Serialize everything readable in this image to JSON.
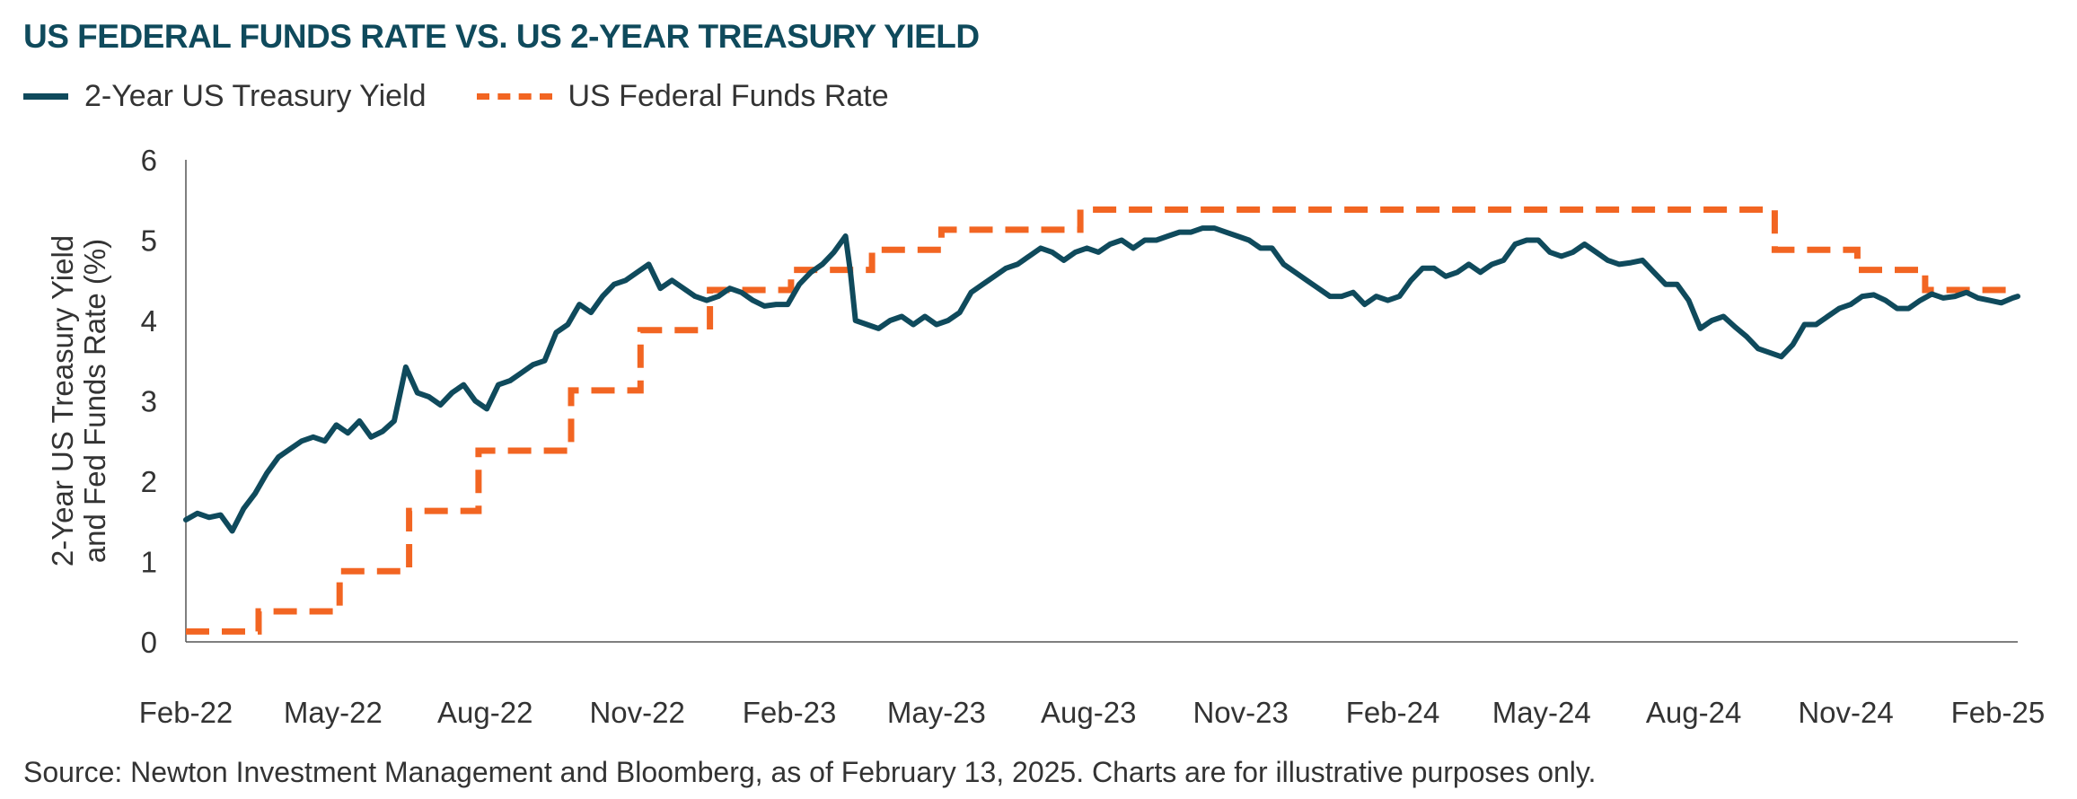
{
  "title": "US FEDERAL FUNDS RATE VS. US 2-YEAR TREASURY YIELD",
  "source": "Source: Newton Investment Management and Bloomberg, as of February 13, 2025. Charts are for illustrative purposes only.",
  "colors": {
    "treasury": "#0f4a5c",
    "fedfunds": "#f26522",
    "axis": "#555555",
    "text": "#333333"
  },
  "chart_data": {
    "type": "line",
    "title": "US FEDERAL FUNDS RATE VS. US 2-YEAR TREASURY YIELD",
    "ylabel": "2-Year US Treasury Yield and Fed Funds Rate (%)",
    "ylabel_lines": [
      "2-Year US Treasury Yield",
      "and Fed Funds Rate (%)"
    ],
    "xlabel": "",
    "ylim": [
      0,
      6
    ],
    "yticks": [
      0,
      1,
      2,
      3,
      4,
      5,
      6
    ],
    "xlim": [
      "2022-02-01",
      "2025-02-13"
    ],
    "xticks": [
      {
        "date": "2022-02-01",
        "label": "Feb-22"
      },
      {
        "date": "2022-05-01",
        "label": "May-22"
      },
      {
        "date": "2022-08-01",
        "label": "Aug-22"
      },
      {
        "date": "2022-11-01",
        "label": "Nov-22"
      },
      {
        "date": "2023-02-01",
        "label": "Feb-23"
      },
      {
        "date": "2023-05-01",
        "label": "May-23"
      },
      {
        "date": "2023-08-01",
        "label": "Aug-23"
      },
      {
        "date": "2023-11-01",
        "label": "Nov-23"
      },
      {
        "date": "2024-02-01",
        "label": "Feb-24"
      },
      {
        "date": "2024-05-01",
        "label": "May-24"
      },
      {
        "date": "2024-08-01",
        "label": "Aug-24"
      },
      {
        "date": "2024-11-01",
        "label": "Nov-24"
      },
      {
        "date": "2025-02-01",
        "label": "Feb-25"
      }
    ],
    "grid": false,
    "legend_position": "top-left",
    "series": [
      {
        "name": "2-Year US Treasury Yield",
        "style": "solid",
        "points": [
          [
            "2022-02-01",
            1.52
          ],
          [
            "2022-02-08",
            1.6
          ],
          [
            "2022-02-15",
            1.55
          ],
          [
            "2022-02-22",
            1.58
          ],
          [
            "2022-03-01",
            1.38
          ],
          [
            "2022-03-08",
            1.66
          ],
          [
            "2022-03-15",
            1.85
          ],
          [
            "2022-03-22",
            2.1
          ],
          [
            "2022-03-29",
            2.3
          ],
          [
            "2022-04-05",
            2.4
          ],
          [
            "2022-04-12",
            2.5
          ],
          [
            "2022-04-19",
            2.55
          ],
          [
            "2022-04-26",
            2.5
          ],
          [
            "2022-05-03",
            2.7
          ],
          [
            "2022-05-10",
            2.6
          ],
          [
            "2022-05-17",
            2.75
          ],
          [
            "2022-05-24",
            2.55
          ],
          [
            "2022-05-31",
            2.62
          ],
          [
            "2022-06-07",
            2.75
          ],
          [
            "2022-06-14",
            3.42
          ],
          [
            "2022-06-21",
            3.1
          ],
          [
            "2022-06-28",
            3.05
          ],
          [
            "2022-07-05",
            2.95
          ],
          [
            "2022-07-12",
            3.1
          ],
          [
            "2022-07-19",
            3.2
          ],
          [
            "2022-07-26",
            3.0
          ],
          [
            "2022-08-02",
            2.9
          ],
          [
            "2022-08-09",
            3.2
          ],
          [
            "2022-08-16",
            3.25
          ],
          [
            "2022-08-23",
            3.35
          ],
          [
            "2022-08-30",
            3.45
          ],
          [
            "2022-09-06",
            3.5
          ],
          [
            "2022-09-13",
            3.85
          ],
          [
            "2022-09-20",
            3.95
          ],
          [
            "2022-09-27",
            4.2
          ],
          [
            "2022-10-04",
            4.1
          ],
          [
            "2022-10-11",
            4.3
          ],
          [
            "2022-10-18",
            4.45
          ],
          [
            "2022-10-25",
            4.5
          ],
          [
            "2022-11-01",
            4.6
          ],
          [
            "2022-11-08",
            4.7
          ],
          [
            "2022-11-15",
            4.4
          ],
          [
            "2022-11-22",
            4.5
          ],
          [
            "2022-11-29",
            4.4
          ],
          [
            "2022-12-06",
            4.3
          ],
          [
            "2022-12-13",
            4.25
          ],
          [
            "2022-12-20",
            4.3
          ],
          [
            "2022-12-27",
            4.4
          ],
          [
            "2023-01-03",
            4.35
          ],
          [
            "2023-01-10",
            4.25
          ],
          [
            "2023-01-17",
            4.18
          ],
          [
            "2023-01-24",
            4.2
          ],
          [
            "2023-01-31",
            4.2
          ],
          [
            "2023-02-07",
            4.45
          ],
          [
            "2023-02-14",
            4.6
          ],
          [
            "2023-02-21",
            4.7
          ],
          [
            "2023-02-28",
            4.85
          ],
          [
            "2023-03-07",
            5.05
          ],
          [
            "2023-03-10",
            4.6
          ],
          [
            "2023-03-13",
            4.0
          ],
          [
            "2023-03-20",
            3.95
          ],
          [
            "2023-03-27",
            3.9
          ],
          [
            "2023-04-03",
            4.0
          ],
          [
            "2023-04-10",
            4.05
          ],
          [
            "2023-04-17",
            3.95
          ],
          [
            "2023-04-24",
            4.05
          ],
          [
            "2023-05-01",
            3.95
          ],
          [
            "2023-05-08",
            4.0
          ],
          [
            "2023-05-15",
            4.1
          ],
          [
            "2023-05-22",
            4.35
          ],
          [
            "2023-05-29",
            4.45
          ],
          [
            "2023-06-05",
            4.55
          ],
          [
            "2023-06-12",
            4.65
          ],
          [
            "2023-06-19",
            4.7
          ],
          [
            "2023-06-26",
            4.8
          ],
          [
            "2023-07-03",
            4.9
          ],
          [
            "2023-07-10",
            4.85
          ],
          [
            "2023-07-17",
            4.75
          ],
          [
            "2023-07-24",
            4.85
          ],
          [
            "2023-07-31",
            4.9
          ],
          [
            "2023-08-07",
            4.85
          ],
          [
            "2023-08-14",
            4.95
          ],
          [
            "2023-08-21",
            5.0
          ],
          [
            "2023-08-28",
            4.9
          ],
          [
            "2023-09-04",
            5.0
          ],
          [
            "2023-09-11",
            5.0
          ],
          [
            "2023-09-18",
            5.05
          ],
          [
            "2023-09-25",
            5.1
          ],
          [
            "2023-10-02",
            5.1
          ],
          [
            "2023-10-09",
            5.15
          ],
          [
            "2023-10-16",
            5.15
          ],
          [
            "2023-10-23",
            5.1
          ],
          [
            "2023-10-30",
            5.05
          ],
          [
            "2023-11-06",
            5.0
          ],
          [
            "2023-11-13",
            4.9
          ],
          [
            "2023-11-20",
            4.9
          ],
          [
            "2023-11-27",
            4.7
          ],
          [
            "2023-12-04",
            4.6
          ],
          [
            "2023-12-11",
            4.5
          ],
          [
            "2023-12-18",
            4.4
          ],
          [
            "2023-12-25",
            4.3
          ],
          [
            "2024-01-01",
            4.3
          ],
          [
            "2024-01-08",
            4.35
          ],
          [
            "2024-01-15",
            4.2
          ],
          [
            "2024-01-22",
            4.3
          ],
          [
            "2024-01-29",
            4.25
          ],
          [
            "2024-02-05",
            4.3
          ],
          [
            "2024-02-12",
            4.5
          ],
          [
            "2024-02-19",
            4.65
          ],
          [
            "2024-02-26",
            4.65
          ],
          [
            "2024-03-04",
            4.55
          ],
          [
            "2024-03-11",
            4.6
          ],
          [
            "2024-03-18",
            4.7
          ],
          [
            "2024-03-25",
            4.6
          ],
          [
            "2024-04-01",
            4.7
          ],
          [
            "2024-04-08",
            4.75
          ],
          [
            "2024-04-15",
            4.95
          ],
          [
            "2024-04-22",
            5.0
          ],
          [
            "2024-04-29",
            5.0
          ],
          [
            "2024-05-06",
            4.85
          ],
          [
            "2024-05-13",
            4.8
          ],
          [
            "2024-05-20",
            4.85
          ],
          [
            "2024-05-27",
            4.95
          ],
          [
            "2024-06-03",
            4.85
          ],
          [
            "2024-06-10",
            4.75
          ],
          [
            "2024-06-17",
            4.7
          ],
          [
            "2024-06-24",
            4.72
          ],
          [
            "2024-07-01",
            4.75
          ],
          [
            "2024-07-08",
            4.6
          ],
          [
            "2024-07-15",
            4.45
          ],
          [
            "2024-07-22",
            4.45
          ],
          [
            "2024-07-29",
            4.25
          ],
          [
            "2024-08-05",
            3.9
          ],
          [
            "2024-08-12",
            4.0
          ],
          [
            "2024-08-19",
            4.05
          ],
          [
            "2024-08-26",
            3.92
          ],
          [
            "2024-09-02",
            3.8
          ],
          [
            "2024-09-09",
            3.65
          ],
          [
            "2024-09-16",
            3.6
          ],
          [
            "2024-09-23",
            3.55
          ],
          [
            "2024-09-30",
            3.7
          ],
          [
            "2024-10-07",
            3.95
          ],
          [
            "2024-10-14",
            3.95
          ],
          [
            "2024-10-21",
            4.05
          ],
          [
            "2024-10-28",
            4.15
          ],
          [
            "2024-11-04",
            4.2
          ],
          [
            "2024-11-11",
            4.3
          ],
          [
            "2024-11-18",
            4.32
          ],
          [
            "2024-11-25",
            4.25
          ],
          [
            "2024-12-02",
            4.15
          ],
          [
            "2024-12-09",
            4.15
          ],
          [
            "2024-12-16",
            4.25
          ],
          [
            "2024-12-23",
            4.33
          ],
          [
            "2024-12-30",
            4.28
          ],
          [
            "2025-01-06",
            4.3
          ],
          [
            "2025-01-13",
            4.35
          ],
          [
            "2025-01-20",
            4.28
          ],
          [
            "2025-01-27",
            4.25
          ],
          [
            "2025-02-03",
            4.22
          ],
          [
            "2025-02-10",
            4.28
          ],
          [
            "2025-02-13",
            4.3
          ]
        ]
      },
      {
        "name": "US Federal Funds Rate",
        "style": "dashed",
        "steps": [
          [
            "2022-02-01",
            0.13
          ],
          [
            "2022-03-17",
            0.38
          ],
          [
            "2022-05-05",
            0.88
          ],
          [
            "2022-06-16",
            1.63
          ],
          [
            "2022-07-28",
            2.38
          ],
          [
            "2022-09-22",
            3.13
          ],
          [
            "2022-11-03",
            3.88
          ],
          [
            "2022-12-15",
            4.38
          ],
          [
            "2023-02-02",
            4.63
          ],
          [
            "2023-03-23",
            4.88
          ],
          [
            "2023-05-04",
            5.13
          ],
          [
            "2023-07-27",
            5.38
          ],
          [
            "2024-09-19",
            4.88
          ],
          [
            "2024-11-08",
            4.63
          ],
          [
            "2024-12-19",
            4.38
          ],
          [
            "2025-02-13",
            4.38
          ]
        ]
      }
    ]
  }
}
